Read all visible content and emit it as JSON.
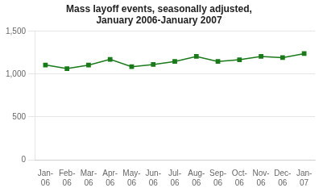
{
  "chart_data": {
    "type": "line",
    "title": "Mass layoff events, seasonally adjusted,\nJanuary 2006-January 2007",
    "categories": [
      "Jan-\n06",
      "Feb-\n06",
      "Mar-\n06",
      "Apr-\n06",
      "May-\n06",
      "Jun-\n06",
      "Jul-\n06",
      "Aug-\n06",
      "Sep-\n06",
      "Oct-\n06",
      "Nov-\n06",
      "Dec-\n06",
      "Jan-\n07"
    ],
    "values": [
      1107,
      1064,
      1105,
      1172,
      1087,
      1112,
      1148,
      1207,
      1148,
      1168,
      1207,
      1193,
      1240
    ],
    "color": "#1a7a1a",
    "marker": "square",
    "ylim": [
      0,
      1500
    ],
    "yticks": [
      0,
      500,
      {
        "value": 1000,
        "label": "1,000"
      },
      {
        "value": 1500,
        "label": "1,500"
      }
    ],
    "grid": true
  }
}
